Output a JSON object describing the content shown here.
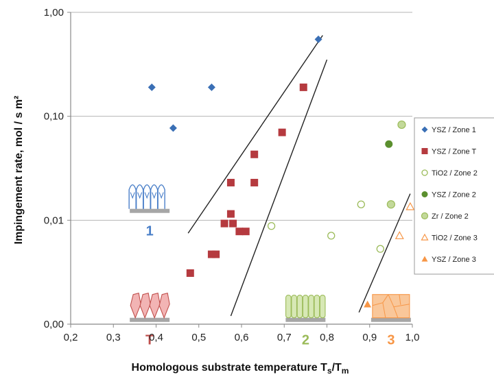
{
  "chart_data": {
    "type": "scatter",
    "ylabel": "Impingement rate,  mol / s m²",
    "xlabel": "Homologous substrate temperature T",
    "xlabel_sub1": "s",
    "xlabel_mid": "/T",
    "xlabel_sub2": "m",
    "xlim": [
      0.2,
      1.0
    ],
    "ylim": [
      0.001,
      1.0
    ],
    "yscale": "log",
    "x_ticks": [
      0.2,
      0.3,
      0.4,
      0.5,
      0.6,
      0.7,
      0.8,
      0.9,
      1.0
    ],
    "x_tick_labels": [
      "0,2",
      "0,3",
      "0,4",
      "0,5",
      "0,6",
      "0,7",
      "0,8",
      "0,9",
      "1,0"
    ],
    "y_ticks": [
      0.001,
      0.01,
      0.1,
      1.0
    ],
    "y_tick_labels": [
      "0,00",
      "0,01",
      "0,10",
      "1,00"
    ],
    "grid": "horizontal",
    "legend_position": "right",
    "series": [
      {
        "name": "YSZ / Zone 1",
        "marker": "diamond",
        "color": "#3a6fb5",
        "x": [
          0.39,
          0.44,
          0.53,
          0.78
        ],
        "y": [
          0.19,
          0.077,
          0.19,
          0.55
        ]
      },
      {
        "name": "YSZ / Zone T",
        "marker": "square",
        "color": "#b53a3f",
        "x": [
          0.48,
          0.53,
          0.54,
          0.56,
          0.575,
          0.575,
          0.58,
          0.595,
          0.61,
          0.63,
          0.63,
          0.695,
          0.745
        ],
        "y": [
          0.0031,
          0.0047,
          0.0047,
          0.0093,
          0.023,
          0.0115,
          0.0093,
          0.0078,
          0.0078,
          0.023,
          0.043,
          0.07,
          0.19
        ]
      },
      {
        "name": "TiO2 / Zone 2",
        "marker": "circle-open",
        "color": "#9bbb59",
        "x": [
          0.67,
          0.81,
          0.88,
          0.925
        ],
        "y": [
          0.0088,
          0.0071,
          0.0142,
          0.0053
        ]
      },
      {
        "name": "YSZ / Zone 2",
        "marker": "circle",
        "color": "#5b8f2e",
        "x": [
          0.945
        ],
        "y": [
          0.054
        ]
      },
      {
        "name": "Zr / Zone 2",
        "marker": "circle-light",
        "color": "#9bbb59",
        "x": [
          0.95,
          0.975
        ],
        "y": [
          0.0142,
          0.083
        ]
      },
      {
        "name": "TiO2 / Zone 3",
        "marker": "triangle-open",
        "color": "#f79646",
        "x": [
          0.97,
          0.995
        ],
        "y": [
          0.0071,
          0.0135
        ]
      },
      {
        "name": "YSZ / Zone 3",
        "marker": "triangle",
        "color": "#f79646",
        "x": [
          0.895
        ],
        "y": [
          0.00155
        ]
      }
    ],
    "boundary_lines": [
      {
        "from": [
          0.475,
          0.0075
        ],
        "to": [
          0.79,
          0.6
        ]
      },
      {
        "from": [
          0.575,
          0.0012
        ],
        "to": [
          0.8,
          0.35
        ]
      },
      {
        "from": [
          0.875,
          0.0013
        ],
        "to": [
          0.995,
          0.018
        ]
      }
    ],
    "zones": [
      {
        "label": "1",
        "color": "#4a7fc8",
        "x": 0.385,
        "y": 0.0095,
        "shape": "columns-domed"
      },
      {
        "label": "T",
        "color": "#c0504d",
        "x": 0.385,
        "y": 0.00085,
        "shape": "fibrous"
      },
      {
        "label": "2",
        "color": "#9bbb59",
        "x": 0.75,
        "y": 0.00085,
        "shape": "columns"
      },
      {
        "label": "3",
        "color": "#f79646",
        "x": 0.95,
        "y": 0.00085,
        "shape": "grains"
      }
    ]
  }
}
